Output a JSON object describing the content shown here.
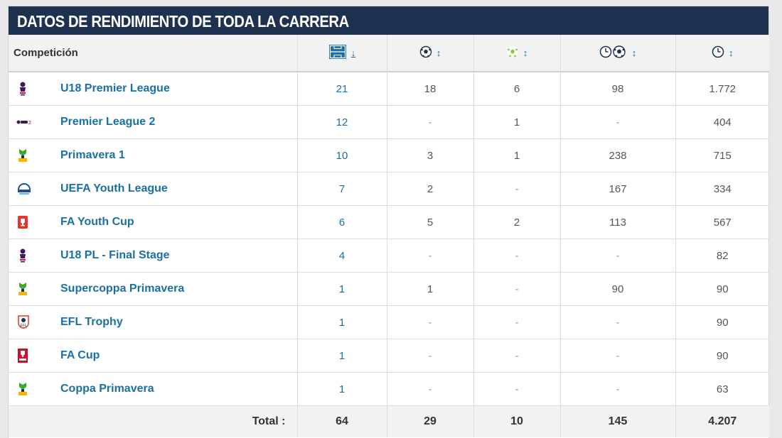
{
  "title": "DATOS DE RENDIMIENTO DE TODA LA CARRERA",
  "columns": {
    "competition": "Competición",
    "appearances_icon": "pitch-icon",
    "goals_icon": "ball-icon",
    "assists_icon": "assist-icon",
    "minutes_per_goal_icon": "clock-ball-icon",
    "minutes_icon": "clock-icon",
    "sort_active": "↓",
    "sort_neutral": "↕"
  },
  "rows": [
    {
      "name": "U18 Premier League",
      "logo": "premier-league-logo",
      "apps": "21",
      "goals": "18",
      "assists": "6",
      "mpg": "98",
      "mins": "1.772"
    },
    {
      "name": "Premier League 2",
      "logo": "premier-league-2-logo",
      "apps": "12",
      "goals": "-",
      "assists": "1",
      "mpg": "-",
      "mins": "404"
    },
    {
      "name": "Primavera 1",
      "logo": "primavera-logo",
      "apps": "10",
      "goals": "3",
      "assists": "1",
      "mpg": "238",
      "mins": "715"
    },
    {
      "name": "UEFA Youth League",
      "logo": "uefa-youth-league-logo",
      "apps": "7",
      "goals": "2",
      "assists": "-",
      "mpg": "167",
      "mins": "334"
    },
    {
      "name": "FA Youth Cup",
      "logo": "fa-youth-cup-logo",
      "apps": "6",
      "goals": "5",
      "assists": "2",
      "mpg": "113",
      "mins": "567"
    },
    {
      "name": "U18 PL - Final Stage",
      "logo": "premier-league-logo",
      "apps": "4",
      "goals": "-",
      "assists": "-",
      "mpg": "-",
      "mins": "82"
    },
    {
      "name": "Supercoppa Primavera",
      "logo": "primavera-logo",
      "apps": "1",
      "goals": "1",
      "assists": "-",
      "mpg": "90",
      "mins": "90"
    },
    {
      "name": "EFL Trophy",
      "logo": "efl-trophy-logo",
      "apps": "1",
      "goals": "-",
      "assists": "-",
      "mpg": "-",
      "mins": "90"
    },
    {
      "name": "FA Cup",
      "logo": "fa-cup-logo",
      "apps": "1",
      "goals": "-",
      "assists": "-",
      "mpg": "-",
      "mins": "90"
    },
    {
      "name": "Coppa Primavera",
      "logo": "primavera-logo",
      "apps": "1",
      "goals": "-",
      "assists": "-",
      "mpg": "-",
      "mins": "63"
    }
  ],
  "totals": {
    "label": "Total :",
    "apps": "64",
    "goals": "29",
    "assists": "10",
    "mpg": "145",
    "mins": "4.207"
  },
  "colors": {
    "header_bg": "#1d3150",
    "link": "#1a6fa3",
    "assist_green": "#8dc63f"
  }
}
